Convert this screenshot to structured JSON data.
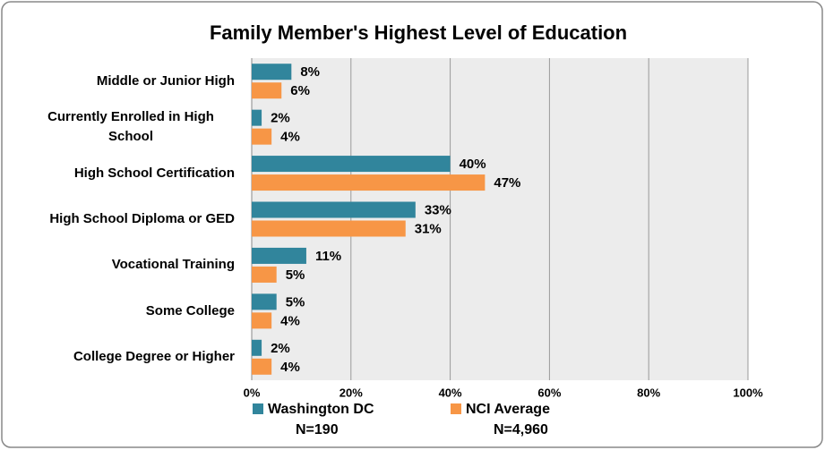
{
  "chart_data": {
    "type": "hbar",
    "title": "Family Member's Highest Level of Education",
    "categories": [
      "Middle or Junior High",
      "Currently Enrolled in High School",
      "High School Certification",
      "High School Diploma or GED",
      "Vocational Training",
      "Some College",
      "College Degree or Higher"
    ],
    "series": [
      {
        "name": "Washington DC",
        "note": "N=190",
        "color": "#31859c",
        "values": [
          8,
          2,
          40,
          33,
          11,
          5,
          2
        ],
        "value_labels": [
          "8%",
          "2%",
          "40%",
          "33%",
          "11%",
          "5%",
          "2%"
        ]
      },
      {
        "name": "NCI Average",
        "note": "N=4,960",
        "color": "#f79646",
        "values": [
          6,
          4,
          47,
          31,
          5,
          4,
          4
        ],
        "value_labels": [
          "6%",
          "4%",
          "47%",
          "31%",
          "5%",
          "4%",
          "4%"
        ]
      }
    ],
    "xlim": [
      0,
      100
    ],
    "xticks": [
      {
        "value": 0,
        "label": "0%"
      },
      {
        "value": 20,
        "label": "20%"
      },
      {
        "value": 40,
        "label": "40%"
      },
      {
        "value": 60,
        "label": "60%"
      },
      {
        "value": 80,
        "label": "80%"
      },
      {
        "value": 100,
        "label": "100%"
      }
    ],
    "grid": true,
    "legend": "bottom"
  }
}
